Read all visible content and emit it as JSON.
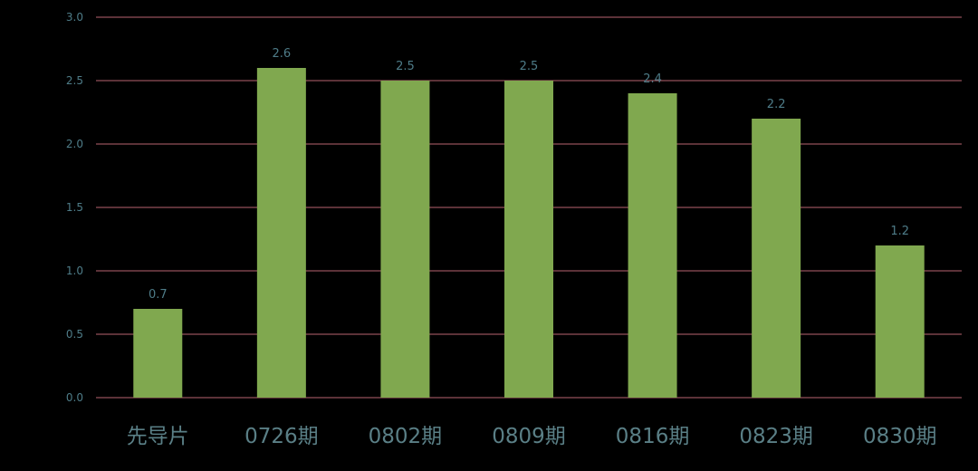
{
  "chart_data": {
    "type": "bar",
    "categories": [
      "先导片",
      "0726期",
      "0802期",
      "0809期",
      "0816期",
      "0823期",
      "0830期"
    ],
    "values": [
      0.7,
      2.6,
      2.5,
      2.5,
      2.4,
      2.2,
      1.2
    ],
    "value_labels": [
      "0.7",
      "2.6",
      "2.5",
      "2.5",
      "2.4",
      "2.2",
      "1.2"
    ],
    "y_ticks": [
      "0.0",
      "0.5",
      "1.0",
      "1.5",
      "2.0",
      "2.5",
      "3.0"
    ],
    "ylim": [
      0,
      3.0
    ],
    "title": "",
    "xlabel": "",
    "ylabel": "",
    "grid": true,
    "legend": "none"
  },
  "colors": {
    "background": "#000000",
    "bar": "#80a84f",
    "grid": "#b86470",
    "y_tick_text": "#4e7c88",
    "data_label_text": "#4e7c88",
    "category_text": "#5a7f86"
  }
}
